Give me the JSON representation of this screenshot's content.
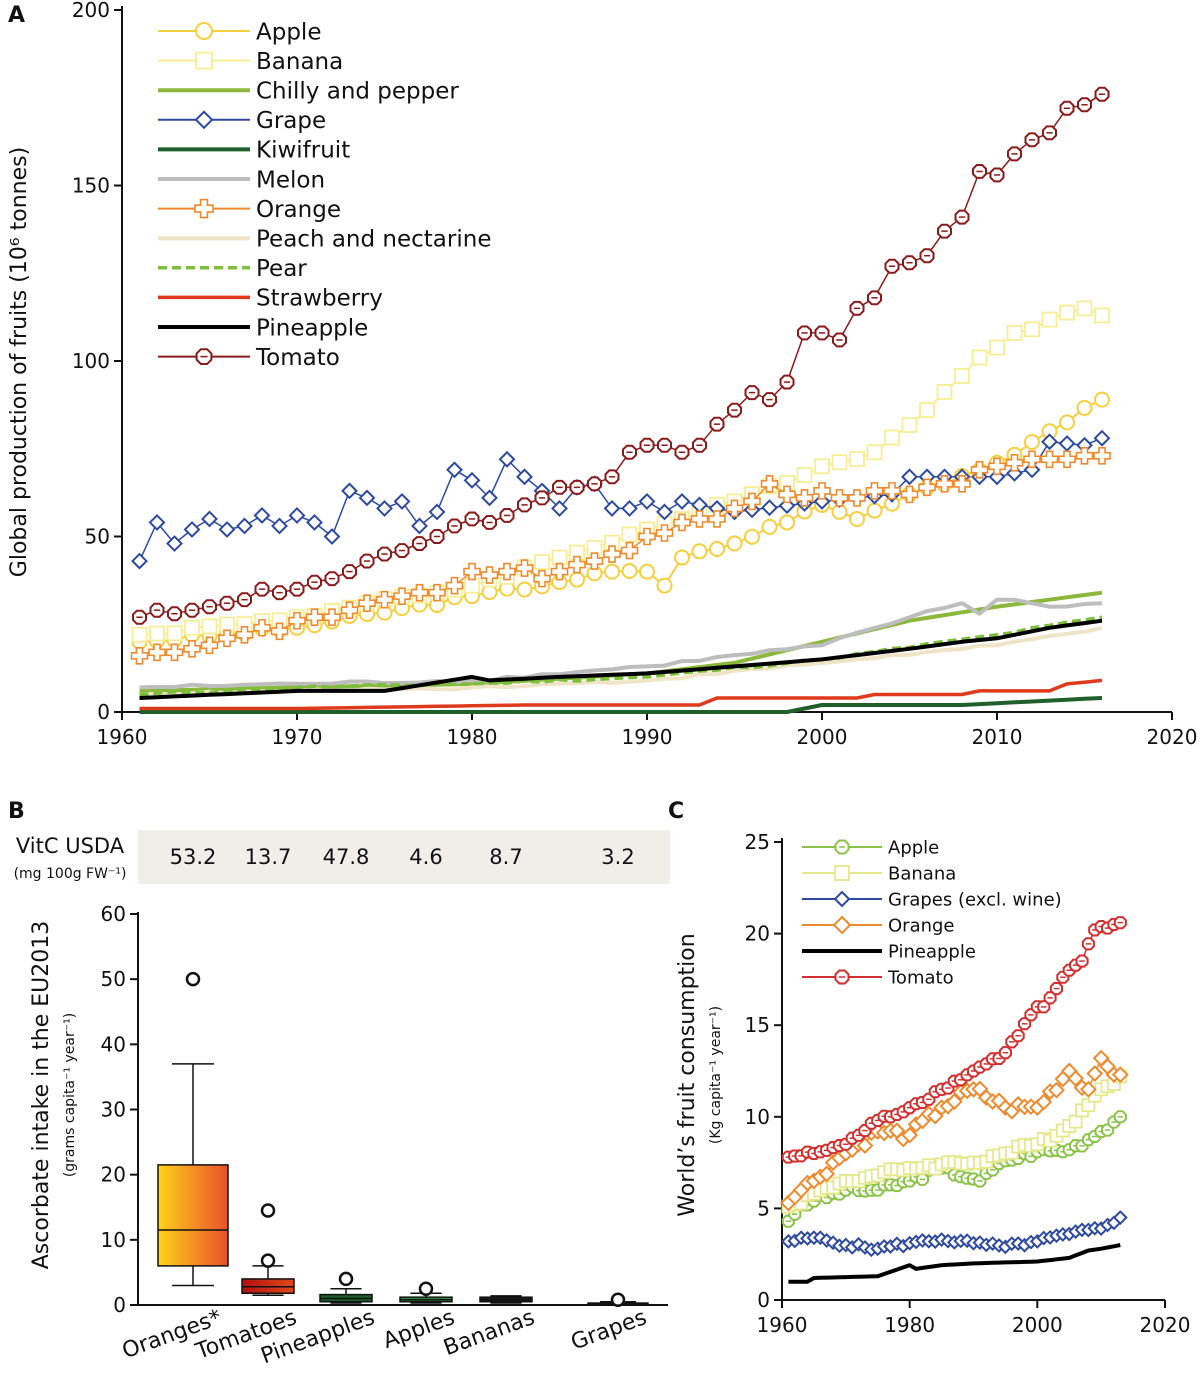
{
  "colors": {
    "apple": "#f5cf3c",
    "banana": "#f8ed92",
    "chilly": "#8ab83a",
    "grape": "#2d4aa0",
    "kiwi": "#1f5f2a",
    "melon": "#bdbdbd",
    "orange": "#ee8a2d",
    "peach": "#efe5c6",
    "pear": "#7bbf3a",
    "strawberry": "#df3a1c",
    "pineapple": "#000000",
    "tomato": "#8b1a1a",
    "appleC": "#8bc34a",
    "bananaC": "#e4e88a",
    "tomatoC": "#d32f2f",
    "shade": "#f1eeea"
  },
  "panel_labels": {
    "a": "A",
    "b": "B",
    "c": "C"
  },
  "vitc": {
    "label": "VitC USDA",
    "unit": "(mg 100g FW⁻¹)",
    "values": [
      "53.2",
      "13.7",
      "47.8",
      "4.6",
      "8.7",
      "3.2"
    ]
  },
  "chart_data": [
    {
      "panel": "A",
      "type": "line",
      "ylabel": "Global production of fruits (10⁶ tonnes)",
      "xlabel": "",
      "xlim": [
        1960,
        2020
      ],
      "ylim": [
        0,
        200
      ],
      "xticks": [
        "1960",
        "1970",
        "1980",
        "1990",
        "2000",
        "2010",
        "2020"
      ],
      "yticks": [
        "0",
        "50",
        "100",
        "150",
        "200"
      ],
      "legend": [
        "Apple",
        "Banana",
        "Chilly and pepper",
        "Grape",
        "Kiwifruit",
        "Melon",
        "Orange",
        "Peach and nectarine",
        "Pear",
        "Strawberry",
        "Pineapple",
        "Tomato"
      ],
      "series": [
        {
          "name": "Apple",
          "x": [
            1961,
            1970,
            1980,
            1985,
            1988,
            1990,
            1991,
            1992,
            1995,
            2000,
            2002,
            2005,
            2010,
            2013,
            2016
          ],
          "values": [
            20,
            24,
            33,
            37,
            40,
            40,
            36,
            44,
            48,
            59,
            55,
            62,
            71,
            80,
            89
          ]
        },
        {
          "name": "Banana",
          "x": [
            1961,
            1970,
            1980,
            1990,
            1995,
            2000,
            2003,
            2006,
            2009,
            2011,
            2015,
            2016
          ],
          "values": [
            22,
            27,
            36,
            52,
            60,
            70,
            74,
            86,
            101,
            108,
            115,
            113
          ]
        },
        {
          "name": "Chilly and pepper",
          "x": [
            1961,
            1970,
            1980,
            1990,
            1995,
            2000,
            2005,
            2010,
            2016
          ],
          "values": [
            6,
            7,
            8,
            11,
            14,
            20,
            26,
            30,
            34
          ]
        },
        {
          "name": "Grape",
          "x": [
            1961,
            1962,
            1963,
            1964,
            1965,
            1966,
            1967,
            1968,
            1969,
            1970,
            1971,
            1972,
            1973,
            1974,
            1975,
            1976,
            1977,
            1978,
            1979,
            1980,
            1981,
            1982,
            1983,
            1984,
            1985,
            1986,
            1987,
            1988,
            1989,
            1990,
            1991,
            1992,
            1995,
            2000,
            2004,
            2005,
            2007,
            2010,
            2012,
            2013,
            2015,
            2016
          ],
          "values": [
            43,
            54,
            48,
            52,
            55,
            52,
            53,
            56,
            53,
            56,
            54,
            50,
            63,
            61,
            58,
            60,
            53,
            57,
            69,
            66,
            61,
            72,
            67,
            63,
            58,
            64,
            65,
            58,
            58,
            60,
            57,
            60,
            57,
            60,
            62,
            67,
            67,
            67,
            69,
            77,
            76,
            78
          ]
        },
        {
          "name": "Kiwifruit",
          "x": [
            1961,
            1990,
            1998,
            2000,
            2008,
            2012,
            2016
          ],
          "values": [
            0,
            0,
            0,
            2,
            2,
            3,
            4
          ]
        },
        {
          "name": "Melon",
          "x": [
            1961,
            1970,
            1980,
            1990,
            2000,
            2005,
            2008,
            2009,
            2010,
            2011,
            2013,
            2016
          ],
          "values": [
            7,
            8,
            9,
            13,
            19,
            27,
            31,
            28,
            32,
            32,
            30,
            31
          ]
        },
        {
          "name": "Orange",
          "x": [
            1961,
            1962,
            1963,
            1964,
            1965,
            1966,
            1967,
            1968,
            1969,
            1970,
            1971,
            1972,
            1973,
            1974,
            1975,
            1976,
            1977,
            1978,
            1979,
            1980,
            1981,
            1982,
            1983,
            1984,
            1985,
            1986,
            1987,
            1988,
            1989,
            1990,
            1991,
            1992,
            1993,
            1994,
            1995,
            1996,
            1997,
            1998,
            1999,
            2000,
            2001,
            2002,
            2003,
            2004,
            2005,
            2006,
            2007,
            2008,
            2009,
            2010,
            2011,
            2012,
            2013,
            2014,
            2015,
            2016
          ],
          "values": [
            16,
            17,
            17,
            18,
            19,
            21,
            22,
            24,
            23,
            26,
            27,
            27,
            29,
            31,
            32,
            33,
            34,
            34,
            36,
            40,
            39,
            40,
            41,
            38,
            40,
            42,
            43,
            45,
            46,
            50,
            51,
            54,
            55,
            55,
            58,
            60,
            65,
            62,
            61,
            63,
            61,
            61,
            63,
            63,
            62,
            64,
            65,
            65,
            69,
            70,
            71,
            72,
            72,
            72,
            73,
            73
          ]
        },
        {
          "name": "Peach and nectarine",
          "x": [
            1961,
            1970,
            1980,
            1990,
            2000,
            2010,
            2016
          ],
          "values": [
            5,
            6,
            7,
            9,
            14,
            19,
            24
          ]
        },
        {
          "name": "Pear",
          "x": [
            1961,
            1970,
            1980,
            1990,
            2000,
            2010,
            2016
          ],
          "values": [
            5,
            7,
            8,
            10,
            15,
            22,
            27
          ]
        },
        {
          "name": "Strawberry",
          "x": [
            1961,
            1967,
            1968,
            1970,
            1983,
            1993,
            1994,
            2002,
            2003,
            2008,
            2009,
            2013,
            2014,
            2016
          ],
          "values": [
            1,
            1,
            1,
            1,
            2,
            2,
            4,
            4,
            5,
            5,
            6,
            6,
            8,
            9
          ]
        },
        {
          "name": "Pineapple",
          "x": [
            1961,
            1970,
            1975,
            1980,
            1981,
            1985,
            1990,
            1995,
            2000,
            2005,
            2008,
            2010,
            2013,
            2016
          ],
          "values": [
            4,
            6,
            6,
            10,
            9,
            10,
            11,
            13,
            15,
            18,
            20,
            21,
            24,
            26
          ]
        },
        {
          "name": "Tomato",
          "x": [
            1961,
            1962,
            1963,
            1964,
            1965,
            1966,
            1967,
            1968,
            1969,
            1970,
            1971,
            1972,
            1973,
            1974,
            1975,
            1976,
            1977,
            1978,
            1979,
            1980,
            1981,
            1982,
            1983,
            1984,
            1985,
            1986,
            1987,
            1988,
            1989,
            1990,
            1991,
            1992,
            1993,
            1994,
            1995,
            1996,
            1997,
            1998,
            1999,
            2000,
            2001,
            2002,
            2003,
            2004,
            2005,
            2006,
            2007,
            2008,
            2009,
            2010,
            2011,
            2012,
            2013,
            2014,
            2015,
            2016
          ],
          "values": [
            27,
            29,
            28,
            29,
            30,
            31,
            32,
            35,
            34,
            35,
            37,
            38,
            40,
            43,
            45,
            46,
            48,
            50,
            53,
            55,
            54,
            56,
            59,
            61,
            64,
            64,
            65,
            67,
            74,
            76,
            76,
            74,
            76,
            82,
            86,
            91,
            89,
            94,
            108,
            108,
            106,
            115,
            118,
            127,
            128,
            130,
            137,
            141,
            154,
            153,
            159,
            163,
            165,
            172,
            173,
            176
          ]
        }
      ]
    },
    {
      "panel": "B",
      "type": "box",
      "ylabel": "Ascorbate intake in the EU2013",
      "ylabel_unit": "(grams capita⁻¹ year⁻¹)",
      "ylim": [
        0,
        60
      ],
      "yticks": [
        "0",
        "10",
        "20",
        "30",
        "40",
        "50",
        "60"
      ],
      "categories": [
        "Oranges*",
        "Tomatoes",
        "Pineapples",
        "Apples",
        "Bananas",
        "Grapes"
      ],
      "boxes": [
        {
          "whisker_low": 3,
          "q1": 6,
          "median": 11.5,
          "q3": 21.5,
          "whisker_high": 37,
          "outliers": [
            50
          ]
        },
        {
          "whisker_low": 1.5,
          "q1": 1.8,
          "median": 2.8,
          "q3": 4,
          "whisker_high": 6,
          "outliers": [
            6.8,
            14.5
          ]
        },
        {
          "whisker_low": 0.3,
          "q1": 0.5,
          "median": 1,
          "q3": 1.6,
          "whisker_high": 2.5,
          "outliers": [
            4
          ]
        },
        {
          "whisker_low": 0.3,
          "q1": 0.5,
          "median": 0.8,
          "q3": 1.2,
          "whisker_high": 1.8,
          "outliers": [
            2.5
          ]
        },
        {
          "whisker_low": 0.3,
          "q1": 0.5,
          "median": 0.8,
          "q3": 1.2,
          "whisker_high": 1.4,
          "outliers": []
        },
        {
          "whisker_low": 0.1,
          "q1": 0.15,
          "median": 0.2,
          "q3": 0.3,
          "whisker_high": 0.5,
          "outliers": [
            0.8
          ]
        }
      ]
    },
    {
      "panel": "C",
      "type": "line",
      "ylabel": "World’s fruit consumption",
      "ylabel_unit": "(Kg capita⁻¹ year⁻¹)",
      "xlim": [
        1960,
        2020
      ],
      "ylim": [
        0,
        25
      ],
      "xticks": [
        "1960",
        "1980",
        "2000",
        "2020"
      ],
      "yticks": [
        "0",
        "5",
        "10",
        "15",
        "20",
        "25"
      ],
      "legend": [
        "Apple",
        "Banana",
        "Grapes (excl. wine)",
        "Orange",
        "Pineapple",
        "Tomato"
      ],
      "series": [
        {
          "name": "Apple",
          "x": [
            1961,
            1963,
            1965,
            1970,
            1975,
            1980,
            1985,
            1990,
            1991,
            1995,
            2000,
            2005,
            2010,
            2013
          ],
          "values": [
            4.3,
            5.2,
            5.4,
            6,
            6,
            6.5,
            7.2,
            6.6,
            6.5,
            7.6,
            8.1,
            8.2,
            9.2,
            10
          ]
        },
        {
          "name": "Banana",
          "x": [
            1961,
            1965,
            1970,
            1975,
            1980,
            1985,
            1990,
            1995,
            2000,
            2005,
            2010,
            2013
          ],
          "values": [
            5.1,
            5.8,
            6.5,
            6.8,
            7.2,
            7.4,
            7.5,
            8,
            8.5,
            9.5,
            11.5,
            12.2
          ]
        },
        {
          "name": "Grapes (excl. wine)",
          "x": [
            1961,
            1965,
            1970,
            1975,
            1980,
            1985,
            1990,
            1995,
            2000,
            2005,
            2010,
            2013
          ],
          "values": [
            3.2,
            3.4,
            3,
            2.8,
            3.1,
            3.3,
            3.1,
            2.9,
            3.2,
            3.6,
            3.9,
            4.5
          ]
        },
        {
          "name": "Orange",
          "x": [
            1961,
            1963,
            1965,
            1968,
            1970,
            1975,
            1980,
            1985,
            1990,
            1995,
            2000,
            2005,
            2008,
            2010,
            2013
          ],
          "values": [
            5.3,
            6,
            6.5,
            7.5,
            8,
            9.2,
            9,
            10.5,
            11.5,
            10.5,
            10.5,
            12.5,
            11.5,
            13.2,
            12.3
          ]
        },
        {
          "name": "Pineapple",
          "x": [
            1961,
            1964,
            1965,
            1975,
            1980,
            1981,
            1985,
            1990,
            2000,
            2005,
            2008,
            2010,
            2013
          ],
          "values": [
            1,
            1,
            1.2,
            1.3,
            1.9,
            1.7,
            1.9,
            2,
            2.1,
            2.3,
            2.7,
            2.8,
            3
          ]
        },
        {
          "name": "Tomato",
          "x": [
            1961,
            1965,
            1970,
            1975,
            1980,
            1985,
            1990,
            1995,
            2000,
            2001,
            2003,
            2005,
            2007,
            2009,
            2011,
            2012,
            2013
          ],
          "values": [
            7.8,
            8,
            8.5,
            9.8,
            10.5,
            11.5,
            12.5,
            13.5,
            16,
            16,
            17,
            18,
            18.5,
            20.2,
            20.3,
            20.5,
            20.6
          ]
        }
      ]
    }
  ]
}
